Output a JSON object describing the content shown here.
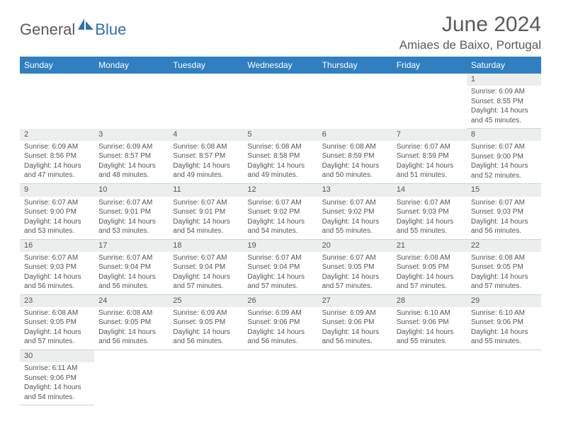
{
  "brand": {
    "word1": "General",
    "word2": "Blue",
    "logo_color": "#2f6fb0"
  },
  "title": {
    "month": "June 2024",
    "location": "Amiaes de Baixo, Portugal"
  },
  "header_bg": "#2f7fc1",
  "daynum_bg": "#eceded",
  "divider_color": "#c8d4e0",
  "weekdays": [
    "Sunday",
    "Monday",
    "Tuesday",
    "Wednesday",
    "Thursday",
    "Friday",
    "Saturday"
  ],
  "weeks": [
    [
      null,
      null,
      null,
      null,
      null,
      null,
      {
        "n": "1",
        "sr": "6:09 AM",
        "ss": "8:55 PM",
        "dl": "14 hours and 45 minutes."
      }
    ],
    [
      {
        "n": "2",
        "sr": "6:09 AM",
        "ss": "8:56 PM",
        "dl": "14 hours and 47 minutes."
      },
      {
        "n": "3",
        "sr": "6:09 AM",
        "ss": "8:57 PM",
        "dl": "14 hours and 48 minutes."
      },
      {
        "n": "4",
        "sr": "6:08 AM",
        "ss": "8:57 PM",
        "dl": "14 hours and 49 minutes."
      },
      {
        "n": "5",
        "sr": "6:08 AM",
        "ss": "8:58 PM",
        "dl": "14 hours and 49 minutes."
      },
      {
        "n": "6",
        "sr": "6:08 AM",
        "ss": "8:59 PM",
        "dl": "14 hours and 50 minutes."
      },
      {
        "n": "7",
        "sr": "6:07 AM",
        "ss": "8:59 PM",
        "dl": "14 hours and 51 minutes."
      },
      {
        "n": "8",
        "sr": "6:07 AM",
        "ss": "9:00 PM",
        "dl": "14 hours and 52 minutes."
      }
    ],
    [
      {
        "n": "9",
        "sr": "6:07 AM",
        "ss": "9:00 PM",
        "dl": "14 hours and 53 minutes."
      },
      {
        "n": "10",
        "sr": "6:07 AM",
        "ss": "9:01 PM",
        "dl": "14 hours and 53 minutes."
      },
      {
        "n": "11",
        "sr": "6:07 AM",
        "ss": "9:01 PM",
        "dl": "14 hours and 54 minutes."
      },
      {
        "n": "12",
        "sr": "6:07 AM",
        "ss": "9:02 PM",
        "dl": "14 hours and 54 minutes."
      },
      {
        "n": "13",
        "sr": "6:07 AM",
        "ss": "9:02 PM",
        "dl": "14 hours and 55 minutes."
      },
      {
        "n": "14",
        "sr": "6:07 AM",
        "ss": "9:03 PM",
        "dl": "14 hours and 55 minutes."
      },
      {
        "n": "15",
        "sr": "6:07 AM",
        "ss": "9:03 PM",
        "dl": "14 hours and 56 minutes."
      }
    ],
    [
      {
        "n": "16",
        "sr": "6:07 AM",
        "ss": "9:03 PM",
        "dl": "14 hours and 56 minutes."
      },
      {
        "n": "17",
        "sr": "6:07 AM",
        "ss": "9:04 PM",
        "dl": "14 hours and 56 minutes."
      },
      {
        "n": "18",
        "sr": "6:07 AM",
        "ss": "9:04 PM",
        "dl": "14 hours and 57 minutes."
      },
      {
        "n": "19",
        "sr": "6:07 AM",
        "ss": "9:04 PM",
        "dl": "14 hours and 57 minutes."
      },
      {
        "n": "20",
        "sr": "6:07 AM",
        "ss": "9:05 PM",
        "dl": "14 hours and 57 minutes."
      },
      {
        "n": "21",
        "sr": "6:08 AM",
        "ss": "9:05 PM",
        "dl": "14 hours and 57 minutes."
      },
      {
        "n": "22",
        "sr": "6:08 AM",
        "ss": "9:05 PM",
        "dl": "14 hours and 57 minutes."
      }
    ],
    [
      {
        "n": "23",
        "sr": "6:08 AM",
        "ss": "9:05 PM",
        "dl": "14 hours and 57 minutes."
      },
      {
        "n": "24",
        "sr": "6:08 AM",
        "ss": "9:05 PM",
        "dl": "14 hours and 56 minutes."
      },
      {
        "n": "25",
        "sr": "6:09 AM",
        "ss": "9:05 PM",
        "dl": "14 hours and 56 minutes."
      },
      {
        "n": "26",
        "sr": "6:09 AM",
        "ss": "9:06 PM",
        "dl": "14 hours and 56 minutes."
      },
      {
        "n": "27",
        "sr": "6:09 AM",
        "ss": "9:06 PM",
        "dl": "14 hours and 56 minutes."
      },
      {
        "n": "28",
        "sr": "6:10 AM",
        "ss": "9:06 PM",
        "dl": "14 hours and 55 minutes."
      },
      {
        "n": "29",
        "sr": "6:10 AM",
        "ss": "9:06 PM",
        "dl": "14 hours and 55 minutes."
      }
    ],
    [
      {
        "n": "30",
        "sr": "6:11 AM",
        "ss": "9:06 PM",
        "dl": "14 hours and 54 minutes."
      },
      null,
      null,
      null,
      null,
      null,
      null
    ]
  ],
  "labels": {
    "sunrise": "Sunrise:",
    "sunset": "Sunset:",
    "daylight": "Daylight:"
  }
}
